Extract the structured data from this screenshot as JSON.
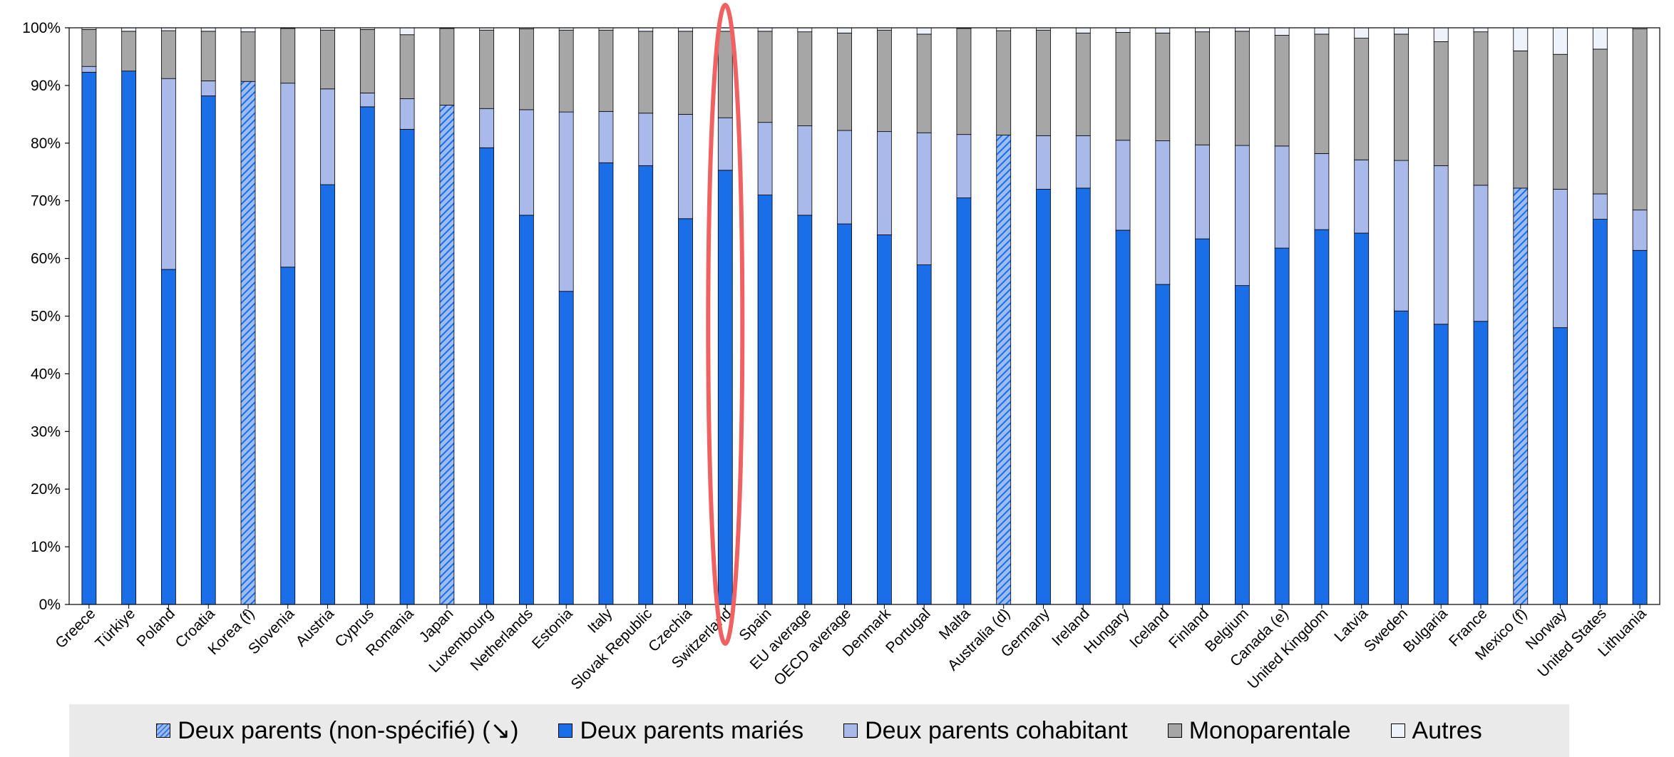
{
  "chart_data": {
    "type": "bar",
    "stacked": true,
    "title": "",
    "xlabel": "",
    "ylabel": "",
    "ylim": [
      0,
      100
    ],
    "ytick_labels": [
      "0%",
      "10%",
      "20%",
      "30%",
      "40%",
      "50%",
      "60%",
      "70%",
      "80%",
      "90%",
      "100%"
    ],
    "grid": false,
    "legend_position": "bottom",
    "highlight_category": "Switzerland",
    "categories": [
      "Greece",
      "Türkiye",
      "Poland",
      "Croatia",
      "Korea (f)",
      "Slovenia",
      "Austria",
      "Cyprus",
      "Romania",
      "Japan",
      "Luxembourg",
      "Netherlands",
      "Estonia",
      "Italy",
      "Slovak Republic",
      "Czechia",
      "Switzerland",
      "Spain",
      "EU average",
      "OECD average",
      "Denmark",
      "Portugal",
      "Malta",
      "Australia (d)",
      "Germany",
      "Ireland",
      "Hungary",
      "Iceland",
      "Finland",
      "Belgium",
      "Canada (e)",
      "United Kingdom",
      "Latvia",
      "Sweden",
      "Bulgaria",
      "France",
      "Mexico (f)",
      "Norway",
      "United States",
      "Lithuania"
    ],
    "series": [
      {
        "name": "Deux parents (non-spécifié) (↘)",
        "color": "#3d7ae0",
        "pattern": "hatch",
        "values": [
          0,
          0,
          0,
          0,
          90.7,
          0,
          0,
          0,
          0,
          86.6,
          0,
          0,
          0,
          0,
          0,
          0,
          0,
          0,
          0,
          0,
          0,
          0,
          0,
          81.4,
          0,
          0,
          0,
          0,
          0,
          0,
          0,
          0,
          0,
          0,
          0,
          0,
          72.2,
          0,
          0,
          0
        ]
      },
      {
        "name": "Deux parents mariés",
        "color": "#1a6ee8",
        "values": [
          92.3,
          92.5,
          58.1,
          88.2,
          0,
          58.5,
          72.8,
          86.3,
          82.4,
          0,
          79.2,
          67.5,
          54.3,
          76.6,
          76.1,
          66.9,
          75.3,
          71,
          67.5,
          66,
          64.1,
          58.9,
          70.5,
          0,
          72,
          72.2,
          64.9,
          55.5,
          63.4,
          55.3,
          61.8,
          65,
          64.4,
          50.9,
          48.6,
          49.1,
          0,
          48,
          66.8,
          61.4
        ]
      },
      {
        "name": "Deux parents cohabitant",
        "color": "#a9b9e9",
        "values": [
          1,
          0,
          33.1,
          2.6,
          0,
          31.9,
          16.6,
          2.4,
          5.3,
          0,
          6.8,
          18.3,
          31.1,
          8.9,
          9.1,
          18.1,
          9.1,
          12.6,
          15.5,
          16.2,
          17.9,
          22.9,
          11,
          0,
          9.3,
          9.1,
          15.6,
          24.9,
          16.3,
          24.3,
          17.7,
          13.2,
          12.7,
          26.1,
          27.5,
          23.6,
          0,
          24,
          4.4,
          7
        ]
      },
      {
        "name": "Monoparentale",
        "color": "#a6a6a6",
        "values": [
          6.4,
          6.9,
          8.3,
          8.6,
          8.6,
          9.5,
          10.2,
          11,
          11.1,
          13.3,
          13.6,
          14,
          14.2,
          14.1,
          14.2,
          14.4,
          15,
          15.8,
          16.3,
          16.9,
          17.6,
          17.1,
          18.4,
          18.1,
          18.3,
          17.8,
          18.7,
          18.7,
          19.6,
          19.8,
          19.2,
          20.7,
          21.1,
          21.9,
          21.5,
          26.6,
          23.8,
          23.4,
          25.1,
          31.4
        ]
      },
      {
        "name": "Autres",
        "color": "#eef2fa",
        "values": [
          0.3,
          0.6,
          0.5,
          0.6,
          0.7,
          0.1,
          0.4,
          0.3,
          1.2,
          0.1,
          0.4,
          0.2,
          0.4,
          0.4,
          0.6,
          0.6,
          0.6,
          0.6,
          0.7,
          0.9,
          0.4,
          1.1,
          0.1,
          0.5,
          0.4,
          0.9,
          0.8,
          0.9,
          0.7,
          0.6,
          1.3,
          1.1,
          1.8,
          1.1,
          2.4,
          0.7,
          4,
          4.6,
          3.7,
          0.2
        ]
      }
    ]
  },
  "legend": [
    {
      "label": "Deux parents (non-spécifié) (↘)",
      "color": "#3d7ae0",
      "pattern": "hatch"
    },
    {
      "label": "Deux parents mariés",
      "color": "#1a6ee8"
    },
    {
      "label": "Deux parents cohabitant",
      "color": "#a9b9e9"
    },
    {
      "label": "Monoparentale",
      "color": "#a6a6a6"
    },
    {
      "label": "Autres",
      "color": "#eef2fa"
    }
  ]
}
